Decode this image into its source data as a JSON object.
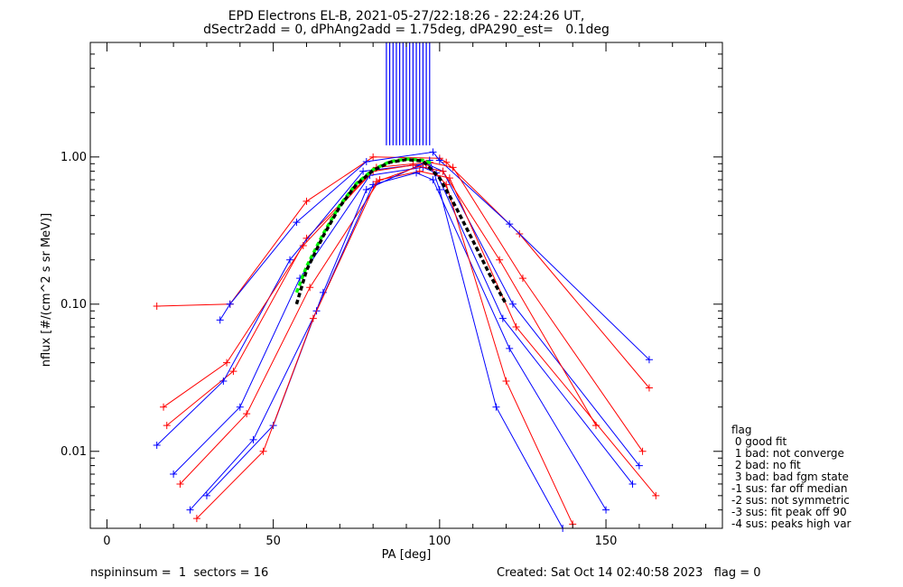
{
  "header": {
    "title_line1": "EPD Electrons EL-B, 2021-05-27/22:18:26 - 22:24:26 UT,",
    "title_line2": "dSectr2add = 0, dPhAng2add = 1.75deg, dPA290_est=   0.1deg"
  },
  "footer": {
    "left": "nspininsum =  1  sectors = 16",
    "right": "Created: Sat Oct 14 02:40:58 2023   flag = 0"
  },
  "legend": {
    "title": "flag",
    "items": [
      " 0 good fit",
      " 1 bad: not converge",
      " 2 bad: no fit",
      " 3 bad: bad fgm state",
      "-1 sus: far off median",
      "-2 sus: not symmetric",
      "-3 sus: fit peak off 90",
      "-4 sus: peaks high var"
    ]
  },
  "chart_data": {
    "type": "line",
    "title": "EPD Electrons EL-B, 2021-05-27/22:18:26 - 22:24:26 UT, dSectr2add = 0, dPhAng2add = 1.75deg, dPA290_est=   0.1deg",
    "xlabel": "PA [deg]",
    "ylabel": "nflux [#/(cm^2 s sr MeV)]",
    "xlim": [
      -5,
      185
    ],
    "ylim": [
      0.003,
      6.0
    ],
    "y_scale": "log",
    "x_ticks": [
      0,
      50,
      100,
      150
    ],
    "x_tick_labels": [
      "0",
      "50",
      "100",
      "150"
    ],
    "y_ticks": [
      0.01,
      0.1,
      1.0
    ],
    "y_tick_labels": [
      "0.01",
      "0.10",
      "1.00"
    ],
    "grid": false,
    "colors": {
      "red": "#ff0000",
      "blue": "#0000ff",
      "green": "#00ff00",
      "black": "#000000"
    },
    "series": [
      {
        "color": "red",
        "marker": "+",
        "x": [
          15,
          37,
          60,
          80,
          100,
          102,
          124,
          163
        ],
        "y": [
          0.097,
          0.1,
          0.5,
          1.0,
          0.98,
          0.92,
          0.3,
          0.027
        ]
      },
      {
        "color": "blue",
        "marker": "+",
        "x": [
          34,
          37,
          57,
          78,
          98,
          100,
          121,
          163
        ],
        "y": [
          0.078,
          0.1,
          0.36,
          0.93,
          1.08,
          0.95,
          0.35,
          0.042
        ]
      },
      {
        "color": "red",
        "marker": "+",
        "x": [
          18,
          38,
          60,
          81,
          97,
          104,
          125,
          161
        ],
        "y": [
          0.015,
          0.035,
          0.28,
          0.85,
          0.92,
          0.85,
          0.15,
          0.01
        ]
      },
      {
        "color": "blue",
        "marker": "+",
        "x": [
          15,
          35,
          55,
          77,
          96,
          101,
          122,
          160
        ],
        "y": [
          0.011,
          0.03,
          0.2,
          0.8,
          0.9,
          0.8,
          0.1,
          0.008
        ]
      },
      {
        "color": "blue",
        "marker": "+",
        "x": [
          20,
          40,
          58,
          79,
          95,
          99,
          119,
          158
        ],
        "y": [
          0.007,
          0.02,
          0.15,
          0.75,
          0.85,
          0.78,
          0.08,
          0.006
        ]
      },
      {
        "color": "red",
        "marker": "+",
        "x": [
          22,
          42,
          61,
          82,
          94,
          103,
          123,
          165
        ],
        "y": [
          0.006,
          0.018,
          0.13,
          0.7,
          0.8,
          0.72,
          0.07,
          0.005
        ]
      },
      {
        "color": "blue",
        "marker": "+",
        "x": [
          25,
          44,
          63,
          80,
          93,
          98,
          121,
          150
        ],
        "y": [
          0.004,
          0.012,
          0.09,
          0.65,
          0.78,
          0.7,
          0.05,
          0.004
        ]
      },
      {
        "color": "red",
        "marker": "+",
        "x": [
          17,
          36,
          59,
          80,
          92,
          101,
          118,
          147
        ],
        "y": [
          0.02,
          0.04,
          0.25,
          0.8,
          0.88,
          0.8,
          0.2,
          0.015
        ]
      },
      {
        "color": "blue",
        "marker": "+",
        "x": [
          30,
          50,
          65,
          78,
          97,
          100,
          117,
          137
        ],
        "y": [
          0.005,
          0.015,
          0.12,
          0.6,
          0.95,
          0.6,
          0.02,
          0.003
        ]
      },
      {
        "color": "red",
        "marker": "+",
        "x": [
          27,
          47,
          62,
          81,
          96,
          102,
          120,
          140
        ],
        "y": [
          0.0035,
          0.01,
          0.08,
          0.68,
          0.9,
          0.65,
          0.03,
          0.0032
        ]
      }
    ],
    "vertical_lines": {
      "color": "blue",
      "x": [
        84,
        85,
        86,
        87,
        88,
        89,
        90,
        91,
        92,
        93,
        94,
        95,
        96,
        97
      ],
      "y_from": 1.2,
      "y_to": 6.0
    },
    "fit_curves": [
      {
        "color": "green",
        "style": "dashed",
        "x": [
          57,
          60,
          65,
          70,
          75,
          80,
          85,
          90,
          95,
          98
        ],
        "y": [
          0.12,
          0.18,
          0.3,
          0.47,
          0.66,
          0.82,
          0.93,
          0.97,
          0.95,
          0.9
        ]
      },
      {
        "color": "black",
        "style": "dashed",
        "x": [
          57,
          60,
          65,
          70,
          75,
          80,
          85,
          90,
          95,
          100,
          105,
          110,
          115,
          120
        ],
        "y": [
          0.1,
          0.17,
          0.29,
          0.46,
          0.65,
          0.81,
          0.92,
          0.96,
          0.94,
          0.72,
          0.45,
          0.27,
          0.16,
          0.1
        ]
      }
    ]
  }
}
